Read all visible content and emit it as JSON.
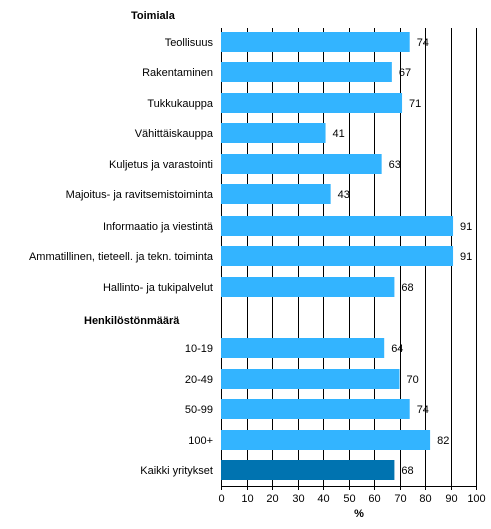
{
  "chart_data": {
    "type": "bar",
    "orientation": "horizontal",
    "groups": [
      {
        "label": "Toimiala"
      },
      {
        "label": "Henkilöstönmäärä"
      }
    ],
    "categories": [
      "Teollisuus",
      "Rakentaminen",
      "Tukkukauppa",
      "Vähittäiskauppa",
      "Kuljetus ja varastointi",
      "Majoitus- ja ravitsemistoiminta",
      "Informaatio ja viestintä",
      "Ammatillinen, tieteell. ja tekn. toiminta",
      "Hallinto- ja tukipalvelut",
      "10-19",
      "20-49",
      "50-99",
      "100+",
      "Kaikki yritykset"
    ],
    "values": [
      74,
      67,
      71,
      41,
      63,
      43,
      91,
      91,
      68,
      64,
      70,
      74,
      82,
      68
    ],
    "value_labels": [
      "74",
      "67",
      "71",
      "41",
      "63",
      "43",
      "91",
      "91",
      "68",
      "64",
      "70",
      "74",
      "82",
      "68"
    ],
    "highlight_index": 13,
    "xlabel": "%",
    "xlim": [
      0,
      100
    ],
    "xticks": [
      "0",
      "10",
      "20",
      "30",
      "40",
      "50",
      "60",
      "70",
      "80",
      "90",
      "100"
    ],
    "grid": "vertical",
    "colors": {
      "bar": "#33b4ff",
      "highlight": "#0073b0",
      "grid": "#000000"
    }
  }
}
